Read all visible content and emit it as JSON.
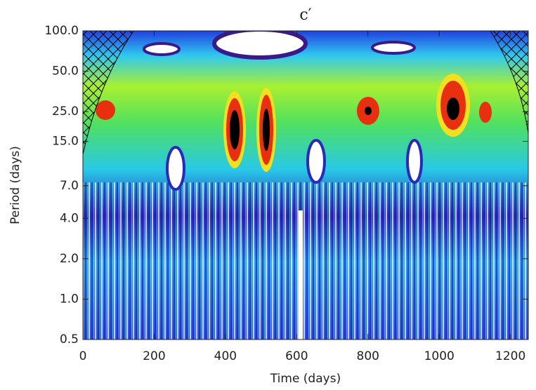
{
  "chart_data": {
    "type": "heatmap",
    "title": "c′",
    "xlabel": "Time (days)",
    "ylabel": "Period (days)",
    "xlim": [
      0,
      1250
    ],
    "xticks": [
      0,
      200,
      400,
      600,
      800,
      1000,
      1200
    ],
    "ylim": [
      0.5,
      100
    ],
    "ylog": true,
    "yticks": [
      {
        "value": 100,
        "label": "100.0"
      },
      {
        "value": 50,
        "label": "50.0"
      },
      {
        "value": 25,
        "label": "25.0"
      },
      {
        "value": 15,
        "label": "15.0"
      },
      {
        "value": 7,
        "label": "7.0"
      },
      {
        "value": 4,
        "label": "4.0"
      },
      {
        "value": 2,
        "label": "2.0"
      },
      {
        "value": 1,
        "label": "1.0"
      },
      0.5
    ]
  }
}
